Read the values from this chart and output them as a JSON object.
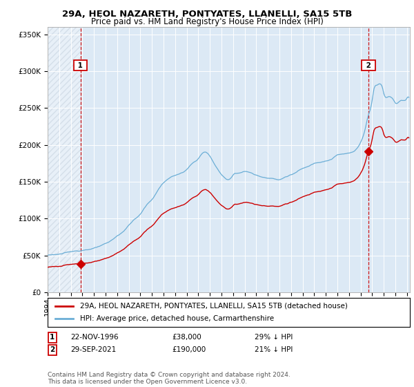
{
  "title1": "29A, HEOL NAZARETH, PONTYATES, LLANELLI, SA15 5TB",
  "title2": "Price paid vs. HM Land Registry's House Price Index (HPI)",
  "ylabel_ticks": [
    "£0",
    "£50K",
    "£100K",
    "£150K",
    "£200K",
    "£250K",
    "£300K",
    "£350K"
  ],
  "ytick_vals": [
    0,
    50000,
    100000,
    150000,
    200000,
    250000,
    300000,
    350000
  ],
  "ylim": [
    0,
    360000
  ],
  "sale1_year": 1996,
  "sale1_month": 11,
  "sale1_price": 38000,
  "sale2_year": 2021,
  "sale2_month": 9,
  "sale2_price": 190000,
  "legend1": "29A, HEOL NAZARETH, PONTYATES, LLANELLI, SA15 5TB (detached house)",
  "legend2": "HPI: Average price, detached house, Carmarthenshire",
  "footnote": "Contains HM Land Registry data © Crown copyright and database right 2024.\nThis data is licensed under the Open Government Licence v3.0.",
  "hpi_color": "#6baed6",
  "price_color": "#cc0000",
  "bg_color": "#dce9f5",
  "hatch_color": "#b0bece",
  "grid_color": "#ffffff",
  "vline_color": "#cc0000",
  "box_color": "#cc0000",
  "title_fontsize": 9.5,
  "subtitle_fontsize": 8.5,
  "tick_fontsize": 7.5,
  "legend_fontsize": 7.5,
  "annot_fontsize": 7.5,
  "footnote_fontsize": 6.5
}
